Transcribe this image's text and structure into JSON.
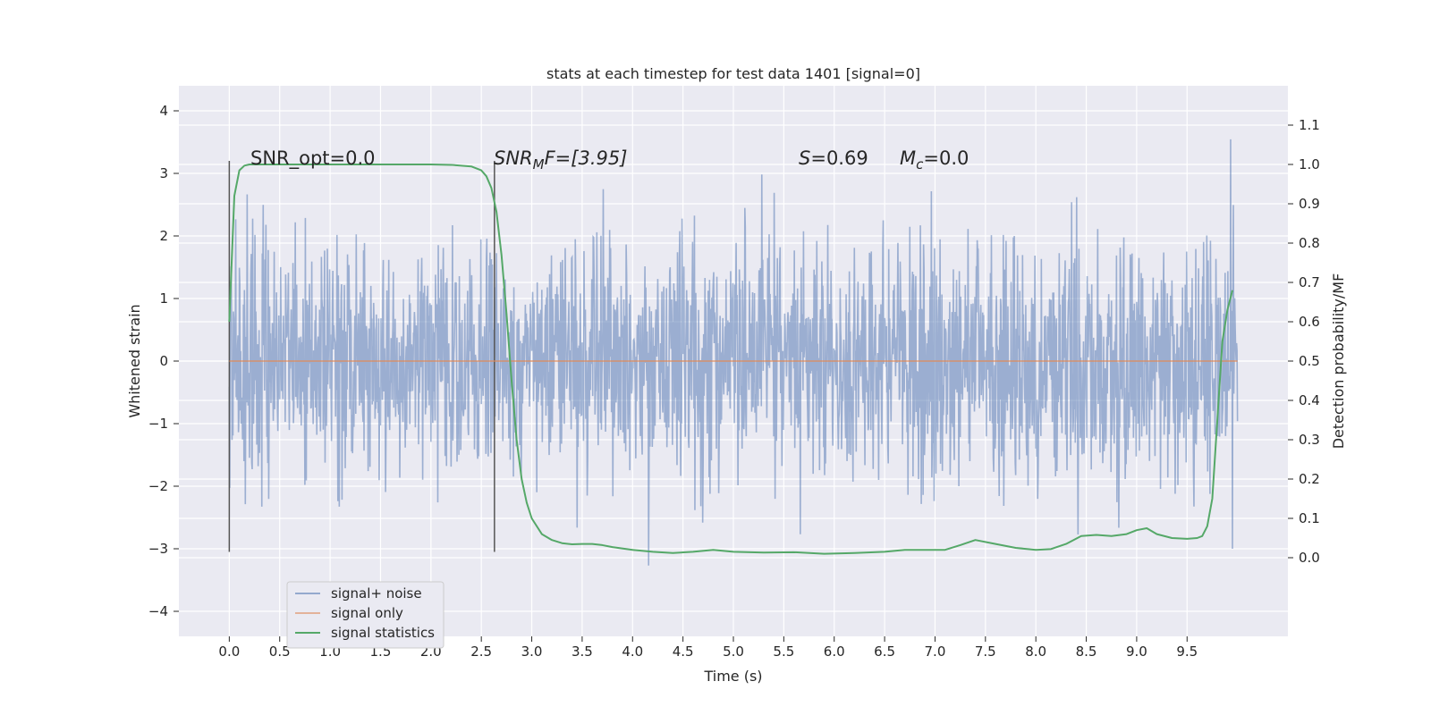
{
  "chart_data": {
    "type": "line",
    "title": "stats at each timestep for test data 1401 [signal=0]",
    "xlabel": "Time (s)",
    "ylabel": "Whitened strain",
    "y2label": "Detection probability/MF",
    "xlim": [
      -0.5,
      10.5
    ],
    "ylim": [
      -4.4,
      4.4
    ],
    "y2lim": [
      -0.2,
      1.2
    ],
    "xticks": [
      0.0,
      0.5,
      1.0,
      1.5,
      2.0,
      2.5,
      3.0,
      3.5,
      4.0,
      4.5,
      5.0,
      5.5,
      6.0,
      6.5,
      7.0,
      7.5,
      8.0,
      8.5,
      9.0,
      9.5
    ],
    "xtick_labels": [
      "0.0",
      "0.5",
      "1.0",
      "1.5",
      "2.0",
      "2.5",
      "3.0",
      "3.5",
      "4.0",
      "4.5",
      "5.0",
      "5.5",
      "6.0",
      "6.5",
      "7.0",
      "7.5",
      "8.0",
      "8.5",
      "9.0",
      "9.5"
    ],
    "yticks": [
      -4,
      -3,
      -2,
      -1,
      0,
      1,
      2,
      3,
      4
    ],
    "ytick_labels": [
      "−4",
      "−3",
      "−2",
      "−1",
      "0",
      "1",
      "2",
      "3",
      "4"
    ],
    "y2ticks": [
      0.0,
      0.1,
      0.2,
      0.3,
      0.4,
      0.5,
      0.6,
      0.7,
      0.8,
      0.9,
      1.0,
      1.1
    ],
    "y2tick_labels": [
      "0.0",
      "0.1",
      "0.2",
      "0.3",
      "0.4",
      "0.5",
      "0.6",
      "0.7",
      "0.8",
      "0.9",
      "1.0",
      "1.1"
    ],
    "grid": true,
    "legend_position": "lower-left",
    "annotations": {
      "snr_opt": "SNR_opt=0.0",
      "snr_mf_main": "SNR",
      "snr_mf_sub": "M",
      "snr_mf_rest": "F=[3.95]",
      "s_var": "S",
      "s_rest": "=0.69",
      "mc_var": "M",
      "mc_sub": "c",
      "mc_rest": "=0.0"
    },
    "vlines": [
      0.0,
      2.63
    ],
    "vline_range": [
      -3.05,
      3.2
    ],
    "series": [
      {
        "name": "signal+ noise",
        "color": "#4c72b0",
        "kind": "noise",
        "x_range": [
          0.0,
          10.0
        ],
        "std": 0.95
      },
      {
        "name": "signal only",
        "color": "#dd8452",
        "kind": "constant",
        "x_range": [
          0.0,
          10.0
        ],
        "value": 0.0
      },
      {
        "name": "signal statistics",
        "color": "#55a868",
        "axis": "right",
        "x": [
          0.0,
          0.05,
          0.1,
          0.15,
          0.2,
          0.3,
          0.5,
          1.0,
          1.5,
          2.0,
          2.2,
          2.4,
          2.5,
          2.55,
          2.6,
          2.65,
          2.7,
          2.75,
          2.8,
          2.85,
          2.9,
          2.95,
          3.0,
          3.1,
          3.2,
          3.3,
          3.4,
          3.5,
          3.6,
          3.7,
          3.8,
          4.0,
          4.2,
          4.4,
          4.6,
          4.8,
          5.0,
          5.3,
          5.6,
          5.9,
          6.2,
          6.5,
          6.7,
          6.9,
          7.1,
          7.25,
          7.4,
          7.6,
          7.8,
          8.0,
          8.15,
          8.3,
          8.45,
          8.6,
          8.75,
          8.9,
          9.0,
          9.1,
          9.2,
          9.35,
          9.5,
          9.6,
          9.65,
          9.7,
          9.75,
          9.8,
          9.85,
          9.9,
          9.95
        ],
        "y": [
          0.6,
          0.92,
          0.985,
          0.997,
          1.0,
          1.0,
          1.0,
          1.0,
          1.0,
          1.0,
          0.999,
          0.995,
          0.985,
          0.97,
          0.94,
          0.88,
          0.77,
          0.62,
          0.45,
          0.3,
          0.2,
          0.14,
          0.1,
          0.06,
          0.045,
          0.037,
          0.034,
          0.035,
          0.035,
          0.032,
          0.027,
          0.02,
          0.015,
          0.012,
          0.015,
          0.02,
          0.015,
          0.013,
          0.014,
          0.01,
          0.012,
          0.015,
          0.02,
          0.02,
          0.02,
          0.032,
          0.045,
          0.035,
          0.025,
          0.02,
          0.022,
          0.035,
          0.055,
          0.058,
          0.055,
          0.06,
          0.07,
          0.075,
          0.06,
          0.05,
          0.048,
          0.05,
          0.055,
          0.08,
          0.15,
          0.35,
          0.55,
          0.63,
          0.68
        ]
      }
    ]
  }
}
